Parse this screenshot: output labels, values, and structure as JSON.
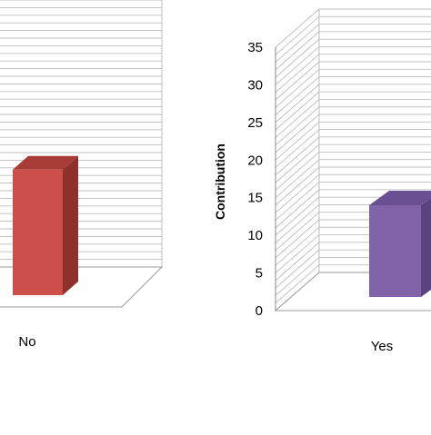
{
  "chart_data": [
    {
      "type": "bar",
      "categories": [
        "No"
      ],
      "values": [
        18
      ],
      "xlabel": "",
      "ylabel": "",
      "ylim": [
        0,
        35
      ],
      "grid": true,
      "colors": {
        "bar": "#cd4f4a",
        "bar_side": "#8e312c",
        "bar_top": "#a83c37"
      }
    },
    {
      "type": "bar",
      "categories": [
        "Yes"
      ],
      "values": [
        14
      ],
      "xlabel": "",
      "ylabel": "Contribution",
      "ylim": [
        0,
        35
      ],
      "yticks": [
        "0",
        "5",
        "10",
        "15",
        "20",
        "25",
        "30",
        "35"
      ],
      "grid": true,
      "colors": {
        "bar": "#8063a8",
        "bar_side": "#5a437e",
        "bar_top": "#6a4f92"
      }
    }
  ]
}
